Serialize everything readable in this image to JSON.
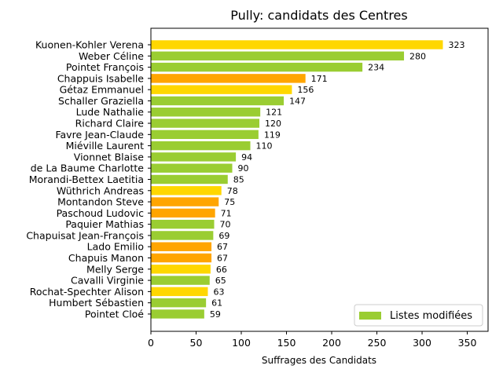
{
  "chart_data": {
    "type": "bar",
    "orientation": "horizontal",
    "title": "Pully: candidats des Centres",
    "xlabel": "Suffrages des Candidats",
    "ylabel": "",
    "xlim": [
      0,
      373
    ],
    "xticks": [
      0,
      50,
      100,
      150,
      200,
      250,
      300,
      350
    ],
    "grid": false,
    "legend": {
      "position": "lower-right",
      "entries": [
        {
          "label": "Listes modifiées",
          "color": "#9acd32"
        }
      ]
    },
    "colors": {
      "green": "#9acd32",
      "orange": "#ffa500",
      "yellow": "#ffd700"
    },
    "bars": [
      {
        "name": "Kuonen-Kohler Verena",
        "value": 323,
        "color": "#ffd700"
      },
      {
        "name": "Weber Céline",
        "value": 280,
        "color": "#9acd32"
      },
      {
        "name": "Pointet François",
        "value": 234,
        "color": "#9acd32"
      },
      {
        "name": "Chappuis Isabelle",
        "value": 171,
        "color": "#ffa500"
      },
      {
        "name": "Gétaz Emmanuel",
        "value": 156,
        "color": "#ffd700"
      },
      {
        "name": "Schaller Graziella",
        "value": 147,
        "color": "#9acd32"
      },
      {
        "name": "Lude Nathalie",
        "value": 121,
        "color": "#9acd32"
      },
      {
        "name": "Richard Claire",
        "value": 120,
        "color": "#9acd32"
      },
      {
        "name": "Favre Jean-Claude",
        "value": 119,
        "color": "#9acd32"
      },
      {
        "name": "Miéville Laurent",
        "value": 110,
        "color": "#9acd32"
      },
      {
        "name": "Vionnet Blaise",
        "value": 94,
        "color": "#9acd32"
      },
      {
        "name": "de La Baume Charlotte",
        "value": 90,
        "color": "#9acd32"
      },
      {
        "name": "Morandi-Bettex Laetitia",
        "value": 85,
        "color": "#9acd32"
      },
      {
        "name": "Wüthrich Andreas",
        "value": 78,
        "color": "#ffd700"
      },
      {
        "name": "Montandon Steve",
        "value": 75,
        "color": "#ffa500"
      },
      {
        "name": "Paschoud Ludovic",
        "value": 71,
        "color": "#ffa500"
      },
      {
        "name": "Paquier Mathias",
        "value": 70,
        "color": "#9acd32"
      },
      {
        "name": "Chapuisat Jean-François",
        "value": 69,
        "color": "#9acd32"
      },
      {
        "name": "Lado Emilio",
        "value": 67,
        "color": "#ffa500"
      },
      {
        "name": "Chapuis Manon",
        "value": 67,
        "color": "#ffa500"
      },
      {
        "name": "Melly Serge",
        "value": 66,
        "color": "#ffd700"
      },
      {
        "name": "Cavalli Virginie",
        "value": 65,
        "color": "#9acd32"
      },
      {
        "name": "Rochat-Spechter Alison",
        "value": 63,
        "color": "#ffd700"
      },
      {
        "name": "Humbert Sébastien",
        "value": 61,
        "color": "#9acd32"
      },
      {
        "name": "Pointet Cloé",
        "value": 59,
        "color": "#9acd32"
      }
    ]
  }
}
